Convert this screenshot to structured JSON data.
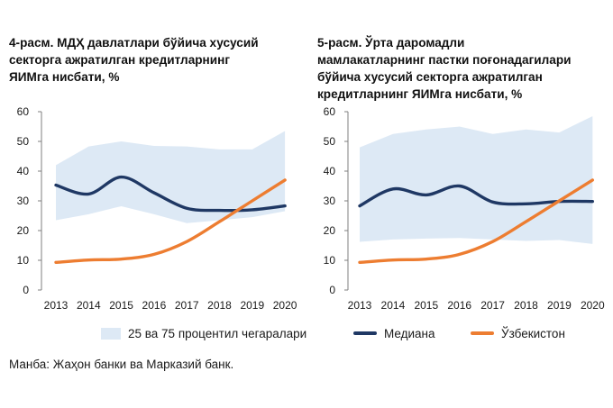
{
  "chart_data": [
    {
      "type": "line",
      "title": "4-расм. МДҲ давлатлари бўйича хусусий\nсекторга ажратилган кредитларнинг\nЯИМга нисбати, %",
      "x": [
        "2013",
        "2014",
        "2015",
        "2016",
        "2017",
        "2018",
        "2019",
        "2020"
      ],
      "ylim": [
        0,
        60
      ],
      "yticks": [
        "0",
        "10",
        "20",
        "30",
        "40",
        "50",
        "60"
      ],
      "band": {
        "lower": [
          23.5,
          25.5,
          28.2,
          25.5,
          22.5,
          23.5,
          24.5,
          26.5
        ],
        "upper": [
          42.0,
          48.3,
          50.0,
          48.5,
          48.3,
          47.3,
          47.3,
          53.5
        ]
      },
      "series": [
        {
          "key": "median",
          "values": [
            35.3,
            32.3,
            38.0,
            32.7,
            27.5,
            26.8,
            27.0,
            28.3
          ]
        },
        {
          "key": "uzbekistan",
          "values": [
            9.3,
            10.1,
            10.4,
            12.0,
            16.3,
            23.0,
            30.0,
            37.0
          ]
        }
      ],
      "grid": false
    },
    {
      "type": "line",
      "title": "5-расм. Ўрта даромадли\nмамлакатларнинг пастки поғонадагилари\nбўйича хусусий секторга ажратилган\nкредитларнинг ЯИМга нисбати, %",
      "x": [
        "2013",
        "2014",
        "2015",
        "2016",
        "2017",
        "2018",
        "2019",
        "2020"
      ],
      "ylim": [
        0,
        60
      ],
      "yticks": [
        "0",
        "10",
        "20",
        "30",
        "40",
        "50",
        "60"
      ],
      "band": {
        "lower": [
          16.2,
          17.0,
          17.3,
          17.5,
          17.0,
          16.5,
          16.8,
          15.5
        ],
        "upper": [
          48.0,
          52.5,
          54.0,
          55.0,
          52.5,
          54.0,
          53.0,
          58.5
        ]
      },
      "series": [
        {
          "key": "median",
          "values": [
            28.3,
            34.0,
            32.0,
            35.0,
            29.6,
            29.0,
            29.8,
            29.8
          ]
        },
        {
          "key": "uzbekistan",
          "values": [
            9.3,
            10.1,
            10.4,
            12.0,
            16.3,
            23.0,
            30.0,
            37.0
          ]
        }
      ],
      "grid": false
    }
  ],
  "legend": {
    "band_label": "25 ва 75 процентил чегаралари",
    "median_label": "Медиана",
    "uzbekistan_label": "Ўзбекистон"
  },
  "colors": {
    "band": "#dde9f5",
    "median": "#1f3864",
    "uzbekistan": "#ed7d31",
    "axis": "#7f7f7f"
  },
  "source": "Манба: Жаҳон банки ва Марказий банк."
}
